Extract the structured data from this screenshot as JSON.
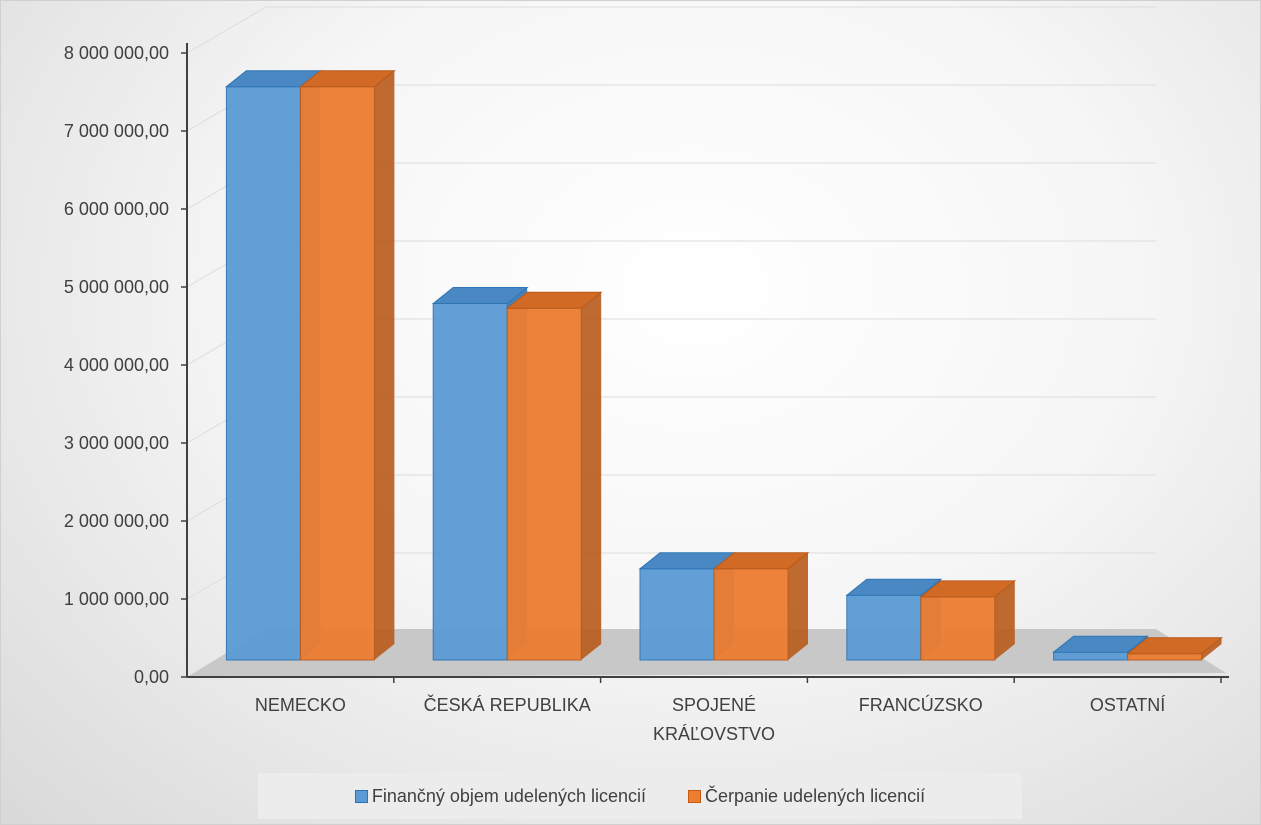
{
  "chart_data": {
    "type": "bar",
    "categories": [
      [
        "NEMECKO"
      ],
      [
        "ČESKÁ REPUBLIKA"
      ],
      [
        "SPOJENÉ",
        "KRÁĽOVSTVO"
      ],
      [
        "FRANCÚZSKO"
      ],
      [
        "OSTATNÍ"
      ]
    ],
    "series": [
      {
        "name": "Finančný objem udelených licencií",
        "color": "#5b9bd5",
        "values": [
          7350000,
          4570000,
          1170000,
          830000,
          100000
        ]
      },
      {
        "name": "Čerpanie udelených licencií",
        "color": "#ed7d31",
        "values": [
          7350000,
          4510000,
          1170000,
          810000,
          80000
        ]
      }
    ],
    "yticks": [
      "0,00",
      "1 000 000,00",
      "2 000 000,00",
      "3 000 000,00",
      "4 000 000,00",
      "5 000 000,00",
      "6 000 000,00",
      "7 000 000,00",
      "8 000 000,00"
    ],
    "ylim": [
      0,
      8000000
    ],
    "grid": true,
    "three_d": true,
    "legend_position": "bottom"
  }
}
